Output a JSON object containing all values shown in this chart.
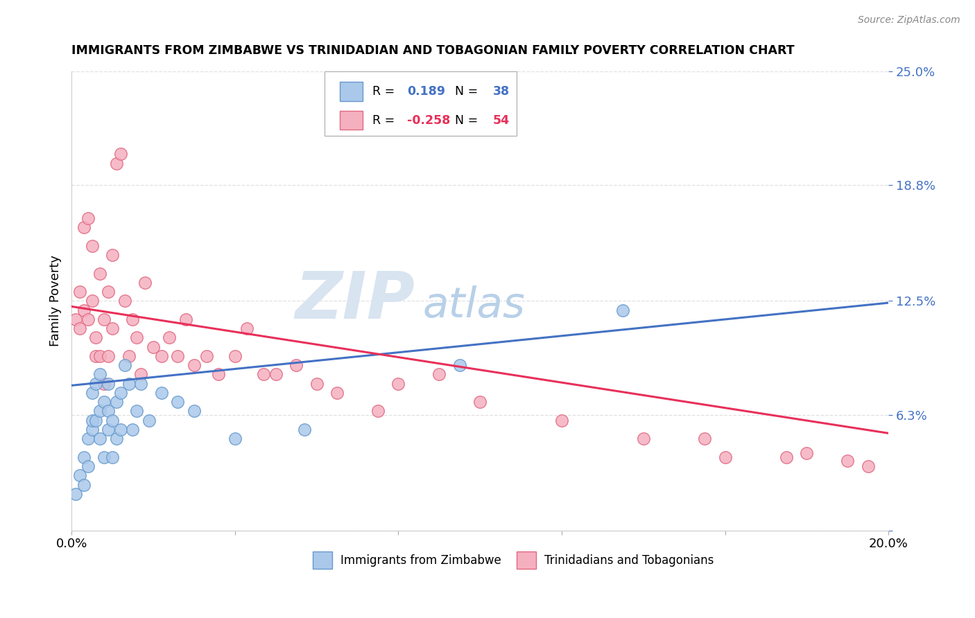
{
  "title": "IMMIGRANTS FROM ZIMBABWE VS TRINIDADIAN AND TOBAGONIAN FAMILY POVERTY CORRELATION CHART",
  "source": "Source: ZipAtlas.com",
  "ylabel": "Family Poverty",
  "xmin": 0.0,
  "xmax": 0.2,
  "ymin": 0.0,
  "ymax": 0.25,
  "blue_R": 0.189,
  "blue_N": 38,
  "pink_R": -0.258,
  "pink_N": 54,
  "blue_color": "#aac8ea",
  "pink_color": "#f5b0c0",
  "blue_edge": "#6699cc",
  "pink_edge": "#e06880",
  "trend_blue": "#4472c4",
  "trend_pink": "#e8305a",
  "watermark_zip_color": "#d8e4f0",
  "watermark_atlas_color": "#b8d0e8",
  "grid_color": "#e0e0e0",
  "blue_scatter_x": [
    0.001,
    0.002,
    0.003,
    0.003,
    0.004,
    0.004,
    0.005,
    0.005,
    0.005,
    0.006,
    0.006,
    0.007,
    0.007,
    0.007,
    0.008,
    0.008,
    0.009,
    0.009,
    0.009,
    0.01,
    0.01,
    0.011,
    0.011,
    0.012,
    0.012,
    0.013,
    0.014,
    0.015,
    0.016,
    0.017,
    0.019,
    0.022,
    0.026,
    0.03,
    0.04,
    0.057,
    0.095,
    0.135
  ],
  "blue_scatter_y": [
    0.02,
    0.03,
    0.025,
    0.04,
    0.035,
    0.05,
    0.055,
    0.06,
    0.075,
    0.06,
    0.08,
    0.05,
    0.065,
    0.085,
    0.04,
    0.07,
    0.055,
    0.065,
    0.08,
    0.04,
    0.06,
    0.05,
    0.07,
    0.055,
    0.075,
    0.09,
    0.08,
    0.055,
    0.065,
    0.08,
    0.06,
    0.075,
    0.07,
    0.065,
    0.05,
    0.055,
    0.09,
    0.12
  ],
  "pink_scatter_x": [
    0.001,
    0.002,
    0.002,
    0.003,
    0.003,
    0.004,
    0.004,
    0.005,
    0.005,
    0.006,
    0.006,
    0.007,
    0.007,
    0.008,
    0.008,
    0.009,
    0.009,
    0.01,
    0.01,
    0.011,
    0.012,
    0.013,
    0.014,
    0.015,
    0.016,
    0.017,
    0.018,
    0.02,
    0.022,
    0.024,
    0.026,
    0.028,
    0.03,
    0.033,
    0.036,
    0.04,
    0.043,
    0.047,
    0.05,
    0.055,
    0.06,
    0.065,
    0.075,
    0.08,
    0.09,
    0.1,
    0.12,
    0.14,
    0.155,
    0.16,
    0.175,
    0.18,
    0.19,
    0.195
  ],
  "pink_scatter_y": [
    0.115,
    0.13,
    0.11,
    0.12,
    0.165,
    0.17,
    0.115,
    0.125,
    0.155,
    0.105,
    0.095,
    0.14,
    0.095,
    0.115,
    0.08,
    0.095,
    0.13,
    0.11,
    0.15,
    0.2,
    0.205,
    0.125,
    0.095,
    0.115,
    0.105,
    0.085,
    0.135,
    0.1,
    0.095,
    0.105,
    0.095,
    0.115,
    0.09,
    0.095,
    0.085,
    0.095,
    0.11,
    0.085,
    0.085,
    0.09,
    0.08,
    0.075,
    0.065,
    0.08,
    0.085,
    0.07,
    0.06,
    0.05,
    0.05,
    0.04,
    0.04,
    0.042,
    0.038,
    0.035
  ],
  "legend_label_blue": "Immigrants from Zimbabwe",
  "legend_label_pink": "Trinidadians and Tobagonians",
  "blue_trend_start_y": 0.079,
  "blue_trend_end_y": 0.124,
  "pink_trend_start_y": 0.122,
  "pink_trend_end_y": 0.053
}
